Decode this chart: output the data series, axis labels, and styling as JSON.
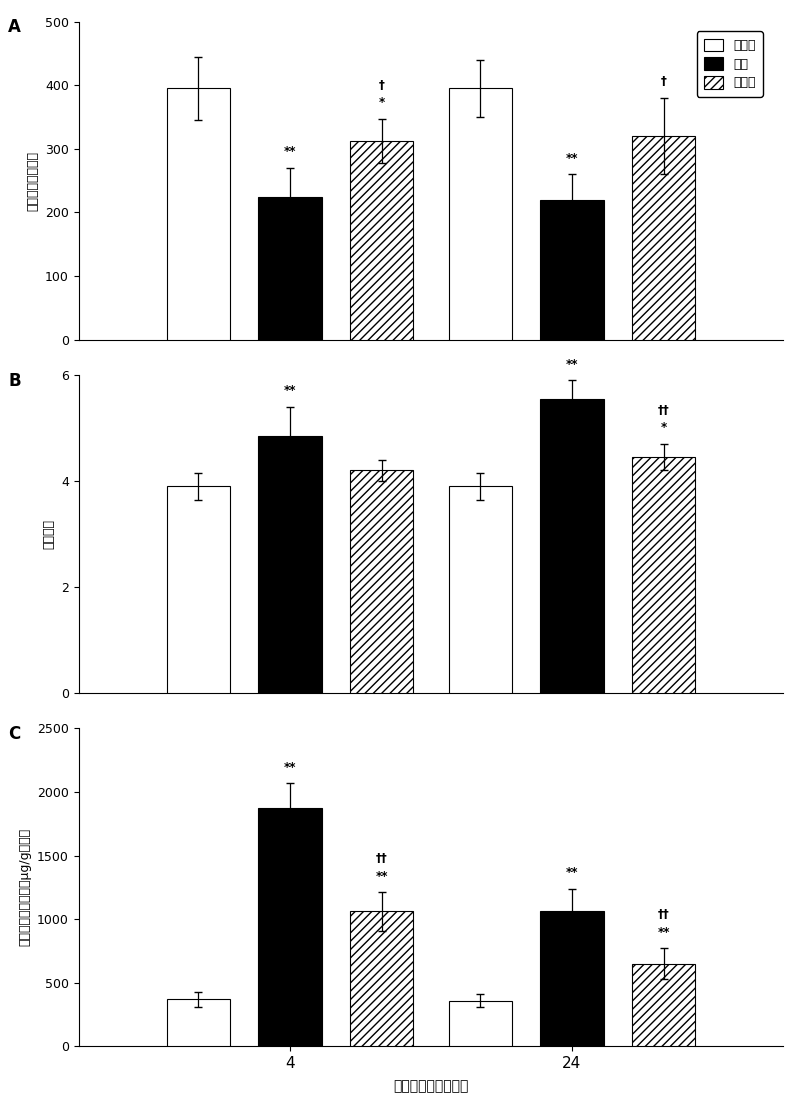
{
  "legend_labels": [
    "假手术",
    "载体",
    "姜黄素"
  ],
  "xlabel": "移植后时间（小时）",
  "xtick_labels": [
    "4",
    "24"
  ],
  "ylabel_A": "左肺静脉氧合指数",
  "ylabel_B": "湿干重比",
  "ylabel_C": "伊文思蓝染料含量（μg/g干重）",
  "ylim_A": [
    0,
    500
  ],
  "yticks_A": [
    0,
    100,
    200,
    300,
    400,
    500
  ],
  "ylim_B": [
    0,
    6
  ],
  "yticks_B": [
    0,
    2,
    4,
    6
  ],
  "ylim_C": [
    0,
    2500
  ],
  "yticks_C": [
    0,
    500,
    1000,
    1500,
    2000,
    2500
  ],
  "data_A": {
    "sham": [
      395,
      395
    ],
    "vehicle": [
      225,
      220
    ],
    "curcumin": [
      312,
      320
    ],
    "sham_err": [
      50,
      45
    ],
    "vehicle_err": [
      45,
      40
    ],
    "curcumin_err": [
      35,
      60
    ]
  },
  "data_B": {
    "sham": [
      3.9,
      3.9
    ],
    "vehicle": [
      4.85,
      5.55
    ],
    "curcumin": [
      4.2,
      4.45
    ],
    "sham_err": [
      0.25,
      0.25
    ],
    "vehicle_err": [
      0.55,
      0.35
    ],
    "curcumin_err": [
      0.2,
      0.25
    ]
  },
  "data_C": {
    "sham": [
      370,
      360
    ],
    "vehicle": [
      1870,
      1060
    ],
    "curcumin": [
      1060,
      650
    ],
    "sham_err": [
      60,
      55
    ],
    "vehicle_err": [
      200,
      180
    ],
    "curcumin_err": [
      150,
      120
    ]
  },
  "annot_A": {
    "t4_sham": [],
    "t4_vehicle": [
      "**"
    ],
    "t4_curcumin": [
      "*",
      "†"
    ],
    "t24_sham": [],
    "t24_vehicle": [
      "**"
    ],
    "t24_curcumin": [
      "†"
    ]
  },
  "annot_B": {
    "t4_sham": [],
    "t4_vehicle": [
      "**"
    ],
    "t4_curcumin": [],
    "t24_sham": [],
    "t24_vehicle": [
      "**"
    ],
    "t24_curcumin": [
      "*",
      "††"
    ]
  },
  "annot_C": {
    "t4_sham": [],
    "t4_vehicle": [
      "**"
    ],
    "t4_curcumin": [
      "**",
      "††"
    ],
    "t24_sham": [],
    "t24_vehicle": [
      "**"
    ],
    "t24_curcumin": [
      "**",
      "††"
    ]
  },
  "bar_colors": [
    "white",
    "black",
    "white"
  ],
  "bar_hatch": [
    "",
    "",
    "////"
  ],
  "bar_edgecolor": [
    "black",
    "black",
    "black"
  ]
}
